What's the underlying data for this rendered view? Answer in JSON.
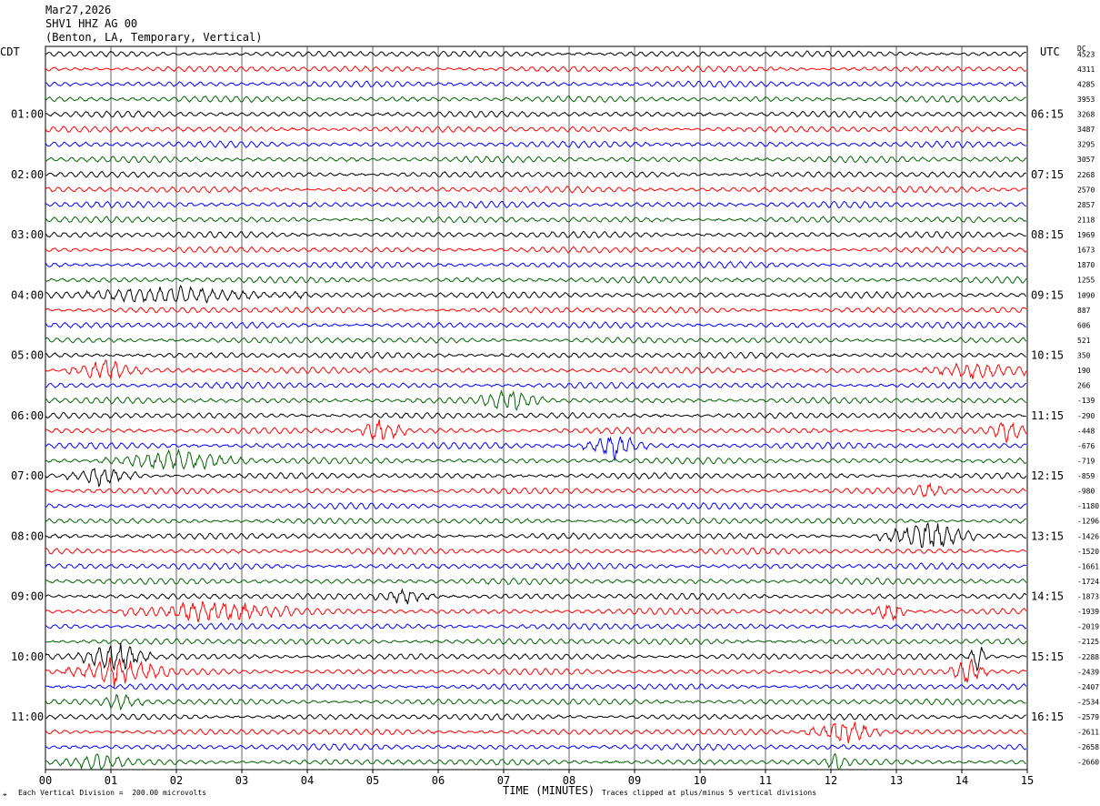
{
  "header": {
    "date": "Mar27,2026",
    "station": "SHV1 HHZ AG 00",
    "location": "(Benton, LA, Temporary, Vertical)"
  },
  "left_tz": "CDT",
  "right_tz": "UTC",
  "right_col_header": "DC",
  "footer": {
    "scale_note": "Each Vertical Division =  200.00 microvolts",
    "xlabel": "TIME (MINUTES)",
    "clip_note": "Traces clipped at plus/minus 5 vertical divisions"
  },
  "chart_data": {
    "type": "line",
    "description_kind": "helicorder",
    "xlabel": "TIME (MINUTES)",
    "xlim": [
      0,
      15
    ],
    "x_ticks": [
      "00",
      "01",
      "02",
      "03",
      "04",
      "05",
      "06",
      "07",
      "08",
      "09",
      "10",
      "11",
      "12",
      "13",
      "14",
      "15"
    ],
    "rows_per_hour": 4,
    "row_minutes": 15,
    "trace_colors": [
      "#000000",
      "#ff0000",
      "#0000ff",
      "#006400"
    ],
    "left_hour_labels": [
      "01:00",
      "02:00",
      "03:00",
      "04:00",
      "05:00",
      "06:00",
      "07:00",
      "08:00",
      "09:00",
      "10:00",
      "11:00"
    ],
    "right_hour_labels": [
      "06:15",
      "07:15",
      "08:15",
      "09:15",
      "10:15",
      "11:15",
      "12:15",
      "13:15",
      "14:15",
      "15:15",
      "16:15"
    ],
    "dc_offsets": [
      "4523",
      "4311",
      "4285",
      "3953",
      "3268",
      "3487",
      "3295",
      "3057",
      "2268",
      "2570",
      "2857",
      "2118",
      "1969",
      "1673",
      "1870",
      "1255",
      "1090",
      "887",
      "606",
      "521",
      "350",
      "190",
      "266",
      "-139",
      "-290",
      "-448",
      "-676",
      "-719",
      "-859",
      "-980",
      "-1180",
      "-1296",
      "-1426",
      "-1520",
      "-1661",
      "-1724",
      "-1873",
      "-1939",
      "-2019",
      "-2125",
      "-2288",
      "-2439",
      "-2407",
      "-2534",
      "-2579",
      "-2611",
      "-2658",
      "-2660"
    ],
    "events": [
      {
        "row": 16,
        "start_min": 0.0,
        "end_min": 4.0,
        "amplitude": 1.6
      },
      {
        "row": 21,
        "start_min": 0.3,
        "end_min": 1.5,
        "amplitude": 2.5
      },
      {
        "row": 21,
        "start_min": 13.3,
        "end_min": 15.0,
        "amplitude": 1.8
      },
      {
        "row": 23,
        "start_min": 6.6,
        "end_min": 7.6,
        "amplitude": 2.6
      },
      {
        "row": 25,
        "start_min": 4.8,
        "end_min": 5.5,
        "amplitude": 3.2
      },
      {
        "row": 25,
        "start_min": 14.4,
        "end_min": 15.0,
        "amplitude": 2.2
      },
      {
        "row": 26,
        "start_min": 8.2,
        "end_min": 9.2,
        "amplitude": 3.0
      },
      {
        "row": 27,
        "start_min": 0.8,
        "end_min": 3.2,
        "amplitude": 2.2
      },
      {
        "row": 28,
        "start_min": 0.3,
        "end_min": 1.4,
        "amplitude": 2.0
      },
      {
        "row": 29,
        "start_min": 13.2,
        "end_min": 13.8,
        "amplitude": 1.8
      },
      {
        "row": 32,
        "start_min": 12.7,
        "end_min": 14.2,
        "amplitude": 3.2
      },
      {
        "row": 36,
        "start_min": 5.0,
        "end_min": 6.0,
        "amplitude": 1.8
      },
      {
        "row": 37,
        "start_min": 1.2,
        "end_min": 3.8,
        "amplitude": 2.5
      },
      {
        "row": 37,
        "start_min": 12.6,
        "end_min": 13.2,
        "amplitude": 2.5
      },
      {
        "row": 40,
        "start_min": 0.5,
        "end_min": 1.6,
        "amplitude": 3.4
      },
      {
        "row": 40,
        "start_min": 14.1,
        "end_min": 14.4,
        "amplitude": 3.2
      },
      {
        "row": 41,
        "start_min": 0.3,
        "end_min": 1.9,
        "amplitude": 3.4
      },
      {
        "row": 41,
        "start_min": 13.8,
        "end_min": 14.4,
        "amplitude": 2.8
      },
      {
        "row": 43,
        "start_min": 0.8,
        "end_min": 1.5,
        "amplitude": 1.8
      },
      {
        "row": 45,
        "start_min": 11.6,
        "end_min": 12.8,
        "amplitude": 3.0
      },
      {
        "row": 47,
        "start_min": 0.2,
        "end_min": 1.4,
        "amplitude": 1.6
      },
      {
        "row": 47,
        "start_min": 11.9,
        "end_min": 12.3,
        "amplitude": 2.0
      }
    ]
  }
}
